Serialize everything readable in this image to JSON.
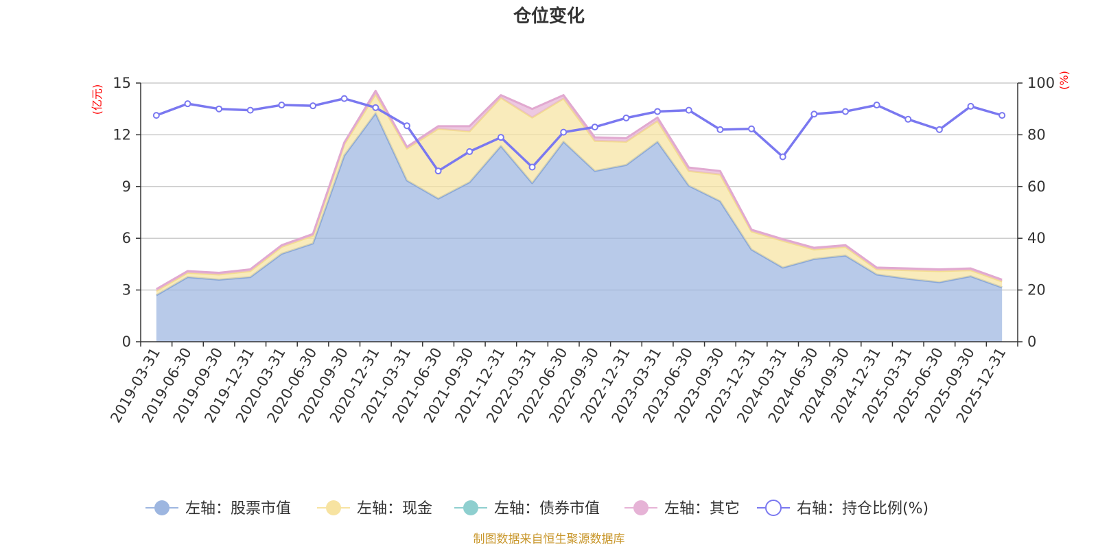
{
  "chart_data": {
    "type": "area",
    "title": "仓位变化",
    "left_axis": {
      "unit": "(亿元)",
      "ylim": [
        0,
        15
      ],
      "ticks": [
        "0",
        "3",
        "6",
        "9",
        "12",
        "15"
      ],
      "tick_values": [
        0,
        3,
        6,
        9,
        12,
        15
      ]
    },
    "right_axis": {
      "unit": "(%)",
      "ylim": [
        0,
        100
      ],
      "ticks": [
        "0",
        "20",
        "40",
        "60",
        "80",
        "100"
      ],
      "tick_values": [
        0,
        20,
        40,
        60,
        80,
        100
      ]
    },
    "categories": [
      "2019-03-31",
      "2019-06-30",
      "2019-09-30",
      "2019-12-31",
      "2020-03-31",
      "2020-06-30",
      "2020-09-30",
      "2020-12-31",
      "2021-03-31",
      "2021-06-30",
      "2021-09-30",
      "2021-12-31",
      "2022-03-31",
      "2022-06-30",
      "2022-09-30",
      "2022-12-31",
      "2023-03-31",
      "2023-06-30",
      "2023-09-30",
      "2023-12-31",
      "2024-03-31",
      "2024-06-30",
      "2024-09-30",
      "2024-12-31",
      "2025-03-31",
      "2025-06-30",
      "2025-09-30",
      "2025-12-31"
    ],
    "series": [
      {
        "name": "左轴：股票市值",
        "axis": "left",
        "stacked": true,
        "color": "#9db6e0",
        "values": [
          2.7,
          3.75,
          3.6,
          3.75,
          5.1,
          5.7,
          10.8,
          13.25,
          9.35,
          8.3,
          9.25,
          11.35,
          9.2,
          11.6,
          9.9,
          10.25,
          11.6,
          9.05,
          8.15,
          5.35,
          4.3,
          4.8,
          5.0,
          3.9,
          3.65,
          3.45,
          3.8,
          3.15
        ]
      },
      {
        "name": "左轴：现金",
        "axis": "left",
        "stacked": true,
        "color": "#f7e3a1",
        "values": [
          0.25,
          0.25,
          0.3,
          0.35,
          0.4,
          0.45,
          0.65,
          1.1,
          1.85,
          4.05,
          2.95,
          2.8,
          3.8,
          2.5,
          1.75,
          1.35,
          1.2,
          0.85,
          1.55,
          1.05,
          1.55,
          0.55,
          0.5,
          0.3,
          0.5,
          0.65,
          0.35,
          0.35
        ]
      },
      {
        "name": "左轴：债券市值",
        "axis": "left",
        "stacked": true,
        "color": "#8ecfcf",
        "values": [
          0,
          0,
          0,
          0,
          0,
          0,
          0,
          0,
          0,
          0,
          0,
          0,
          0,
          0,
          0,
          0,
          0,
          0,
          0,
          0,
          0,
          0,
          0,
          0,
          0,
          0,
          0,
          0
        ]
      },
      {
        "name": "左轴：其它",
        "axis": "left",
        "stacked": true,
        "color": "#e6b3d6",
        "values": [
          0.1,
          0.1,
          0.1,
          0.1,
          0.1,
          0.1,
          0.1,
          0.2,
          0.1,
          0.15,
          0.3,
          0.15,
          0.5,
          0.2,
          0.2,
          0.2,
          0.2,
          0.2,
          0.2,
          0.1,
          0.1,
          0.1,
          0.1,
          0.1,
          0.1,
          0.1,
          0.1,
          0.1
        ]
      },
      {
        "name": "右轴：持仓比例(%)",
        "axis": "right",
        "stacked": false,
        "color": "#7a78f0",
        "values": [
          87.5,
          92,
          90,
          89.5,
          91.5,
          91.2,
          94,
          90.5,
          83.5,
          66,
          73.5,
          79,
          67.5,
          81,
          83,
          86.5,
          89,
          89.5,
          82,
          82.3,
          71.5,
          88,
          89,
          91.5,
          86,
          82,
          91,
          87.5
        ]
      }
    ],
    "legend_position": "bottom",
    "grid": true
  },
  "footer": {
    "source": "制图数据来自恒生聚源数据库"
  }
}
